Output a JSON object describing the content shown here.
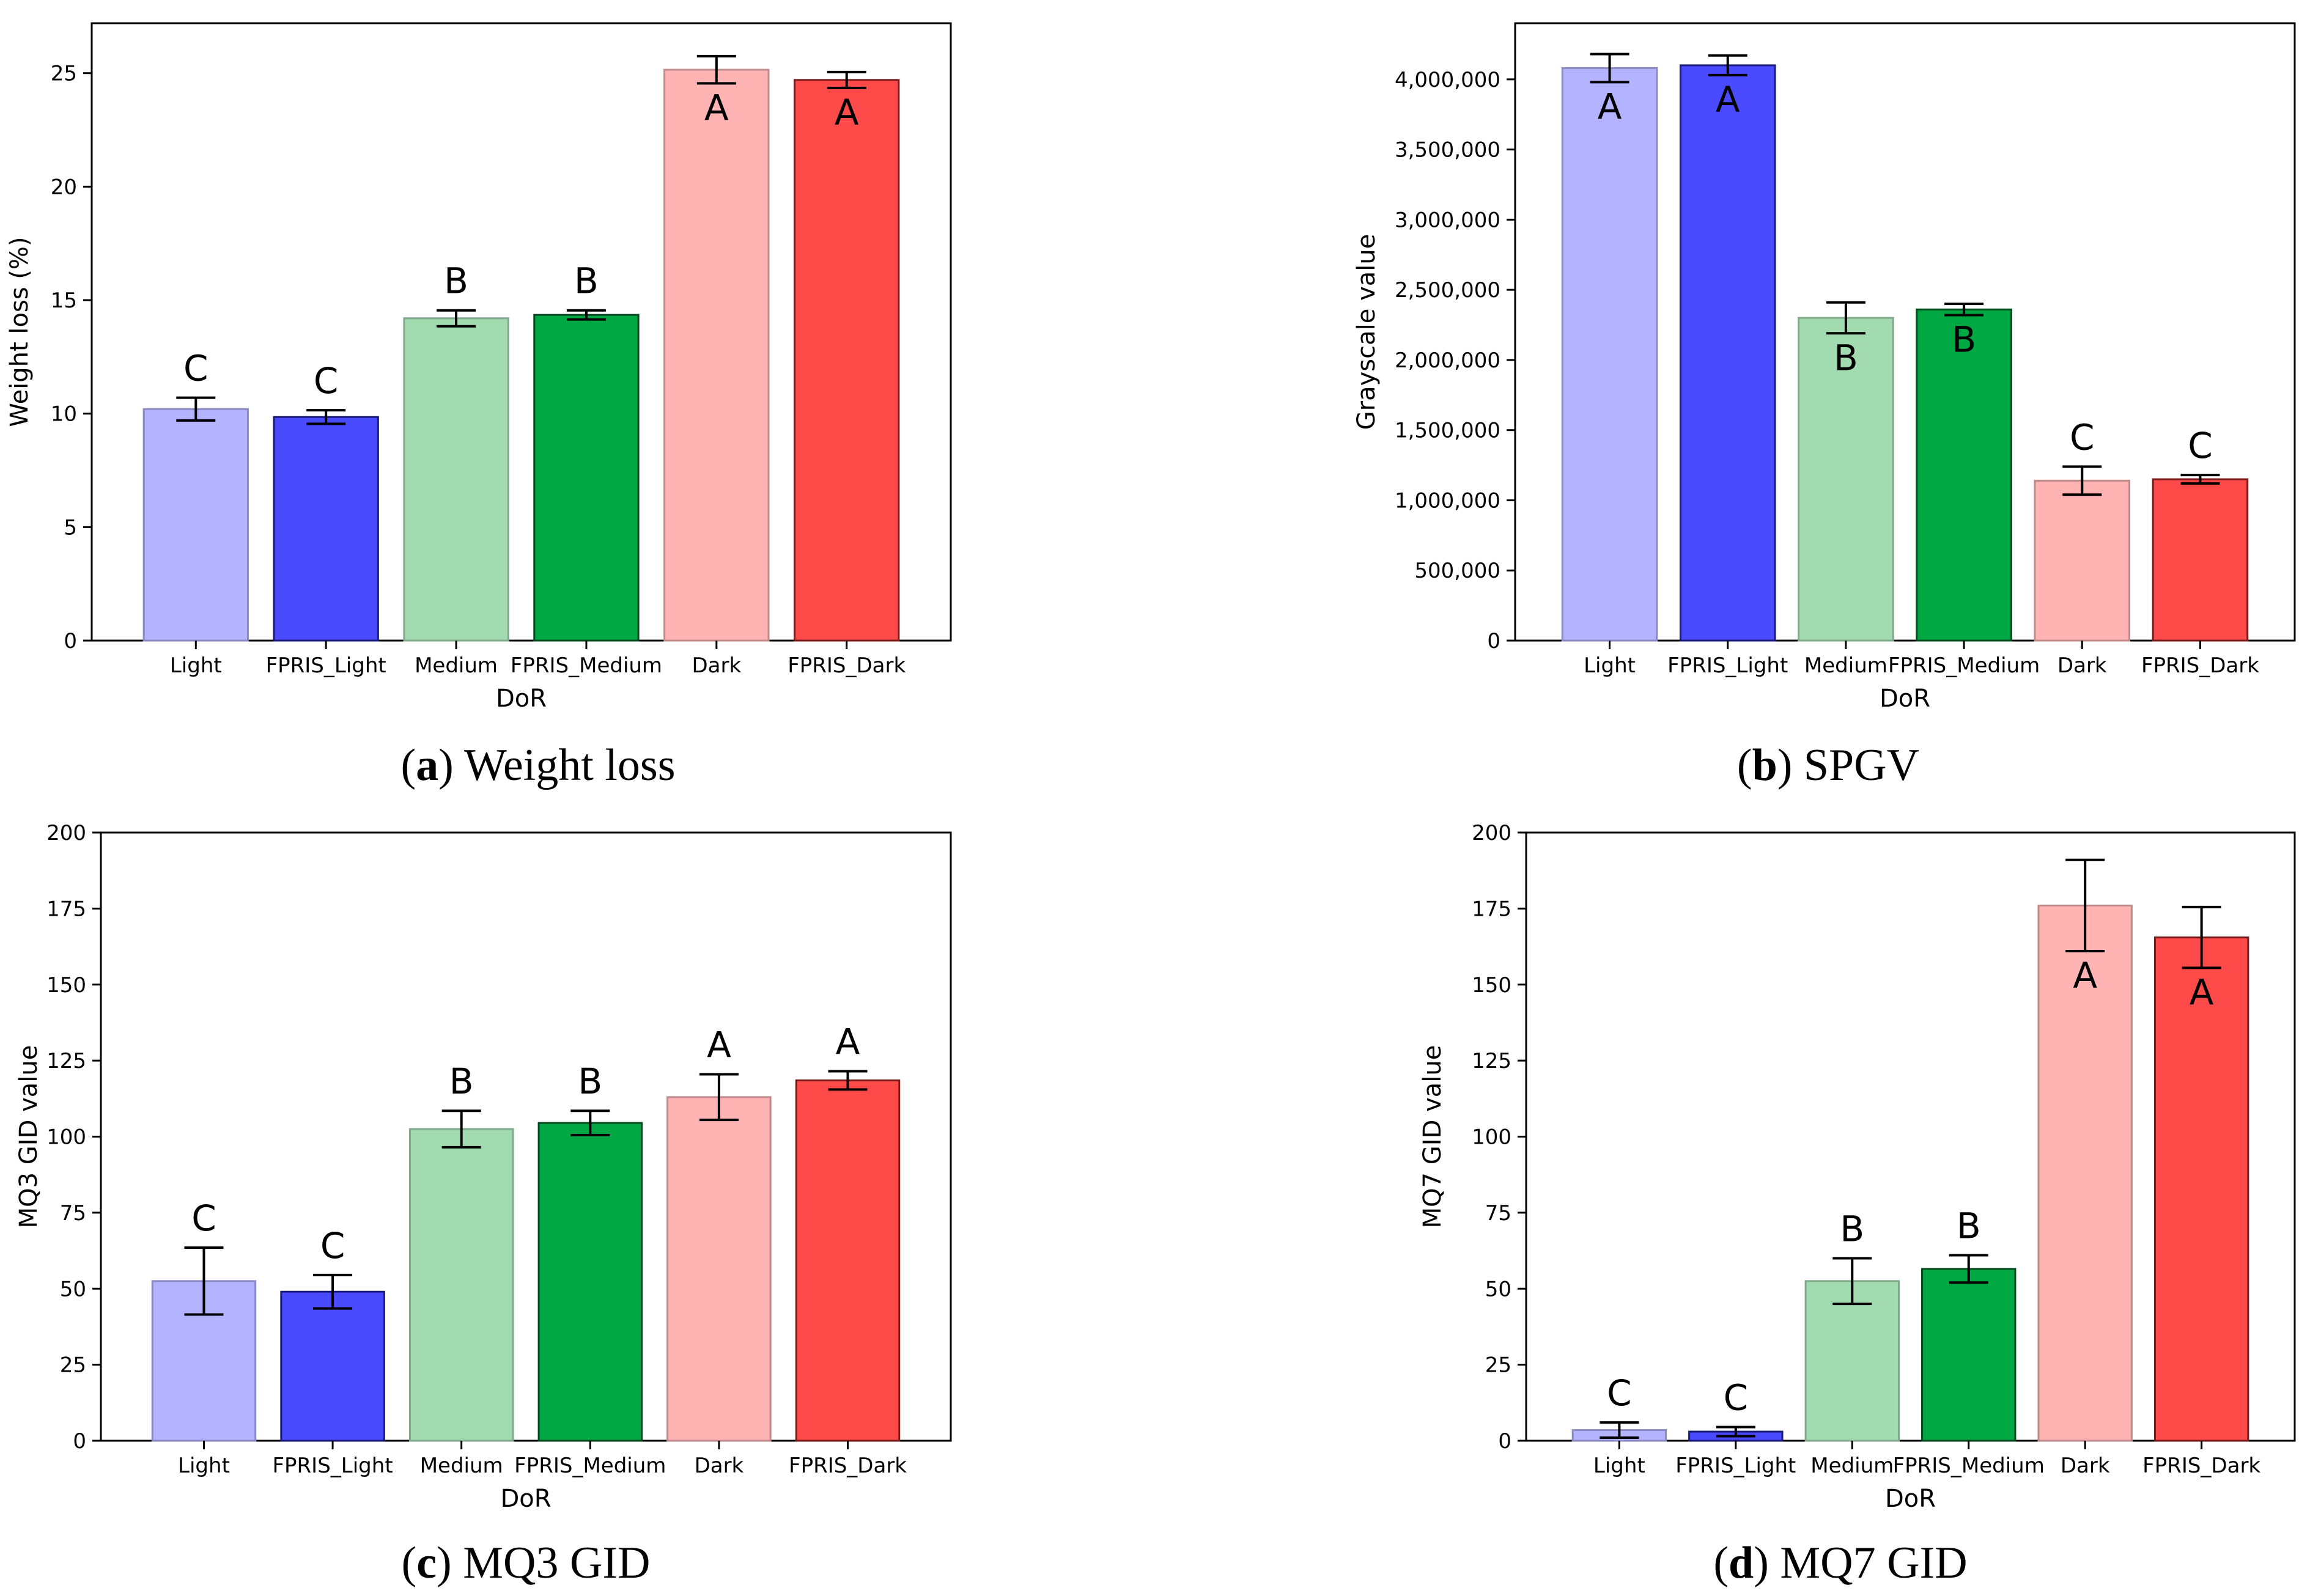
{
  "chart_data": [
    {
      "id": "a",
      "type": "bar",
      "caption_letter": "a",
      "caption_text": "Weight loss",
      "xlabel": "DoR",
      "ylabel": "Weight loss (%)",
      "categories": [
        "Light",
        "FPRIS_Light",
        "Medium",
        "FPRIS_Medium",
        "Dark",
        "FPRIS_Dark"
      ],
      "values": [
        10.2,
        9.85,
        14.2,
        14.35,
        25.15,
        24.7
      ],
      "errors": [
        0.5,
        0.3,
        0.35,
        0.2,
        0.6,
        0.35
      ],
      "groups": [
        "C",
        "C",
        "B",
        "B",
        "A",
        "A"
      ],
      "ylim": [
        0,
        27.2
      ],
      "yticks": [
        0,
        5,
        10,
        15,
        20,
        25
      ],
      "ytick_labels": [
        "0",
        "5",
        "10",
        "15",
        "20",
        "25"
      ]
    },
    {
      "id": "b",
      "type": "bar",
      "caption_letter": "b",
      "caption_text": "SPGV",
      "xlabel": "DoR",
      "ylabel": "Grayscale value",
      "categories": [
        "Light",
        "FPRIS_Light",
        "Medium",
        "FPRIS_Medium",
        "Dark",
        "FPRIS_Dark"
      ],
      "values": [
        4080000,
        4100000,
        2300000,
        2360000,
        1140000,
        1150000
      ],
      "errors": [
        100000,
        70000,
        110000,
        40000,
        100000,
        30000
      ],
      "groups": [
        "A",
        "A",
        "B",
        "B",
        "C",
        "C"
      ],
      "ylim": [
        0,
        4400000
      ],
      "yticks": [
        0,
        500000,
        1000000,
        1500000,
        2000000,
        2500000,
        3000000,
        3500000,
        4000000
      ],
      "ytick_labels": [
        "0",
        "500,000",
        "1,000,000",
        "1,500,000",
        "2,000,000",
        "2,500,000",
        "3,000,000",
        "3,500,000",
        "4,000,000"
      ]
    },
    {
      "id": "c",
      "type": "bar",
      "caption_letter": "c",
      "caption_text": "MQ3 GID",
      "xlabel": "DoR",
      "ylabel": "MQ3 GID value",
      "categories": [
        "Light",
        "FPRIS_Light",
        "Medium",
        "FPRIS_Medium",
        "Dark",
        "FPRIS_Dark"
      ],
      "values": [
        52.5,
        49,
        102.5,
        104.5,
        113,
        118.5
      ],
      "errors": [
        11,
        5.5,
        6,
        4,
        7.5,
        3
      ],
      "groups": [
        "C",
        "C",
        "B",
        "B",
        "A",
        "A"
      ],
      "ylim": [
        0,
        200
      ],
      "yticks": [
        0,
        25,
        50,
        75,
        100,
        125,
        150,
        175,
        200
      ],
      "ytick_labels": [
        "0",
        "25",
        "50",
        "75",
        "100",
        "125",
        "150",
        "175",
        "200"
      ]
    },
    {
      "id": "d",
      "type": "bar",
      "caption_letter": "d",
      "caption_text": "MQ7 GID",
      "xlabel": "DoR",
      "ylabel": "MQ7 GID value",
      "categories": [
        "Light",
        "FPRIS_Light",
        "Medium",
        "FPRIS_Medium",
        "Dark",
        "FPRIS_Dark"
      ],
      "values": [
        3.5,
        3,
        52.5,
        56.5,
        176,
        165.5
      ],
      "errors": [
        2.5,
        1.5,
        7.5,
        4.5,
        15,
        10
      ],
      "groups": [
        "C",
        "C",
        "B",
        "B",
        "A",
        "A"
      ],
      "ylim": [
        0,
        200
      ],
      "yticks": [
        0,
        25,
        50,
        75,
        100,
        125,
        150,
        175,
        200
      ],
      "ytick_labels": [
        "0",
        "25",
        "50",
        "75",
        "100",
        "125",
        "150",
        "175",
        "200"
      ]
    }
  ],
  "colors": {
    "fills": [
      "#b3b3ff",
      "#4a4aff",
      "#a3dbb1",
      "#00a844",
      "#ffb3b3",
      "#ff4a4a"
    ],
    "edges": [
      "#8a8ac0",
      "#1a1a7a",
      "#80a88a",
      "#004a1e",
      "#c08a8a",
      "#7a1a1a"
    ]
  }
}
